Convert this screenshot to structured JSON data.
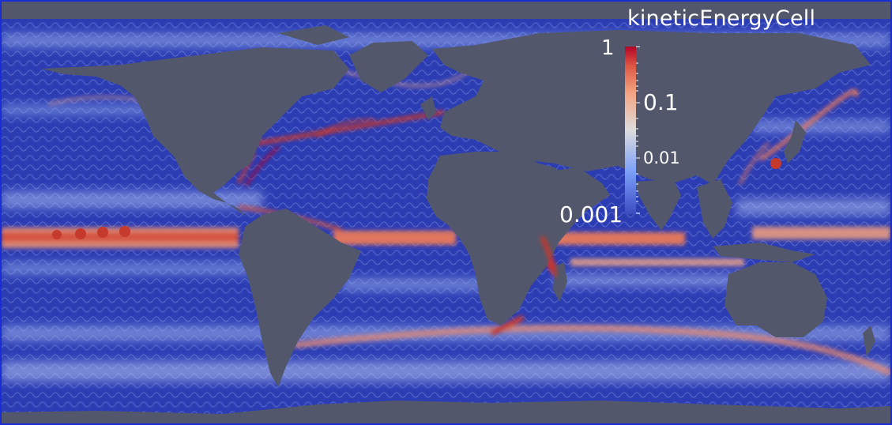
{
  "colorbar": {
    "title": "kineticEnergyCell",
    "scale": "log",
    "range": [
      0.001,
      1
    ],
    "ticks": [
      "1",
      "0.1",
      "0.01",
      "0.001"
    ],
    "colormap": [
      "#3b4cc0",
      "#7b9ff9",
      "#c0d4f5",
      "#f2cbb7",
      "#ee8468",
      "#b40426"
    ]
  },
  "colors": {
    "land": "#52576b",
    "ocean_low": "#2f3fb0",
    "border": "#1a2bd8"
  }
}
